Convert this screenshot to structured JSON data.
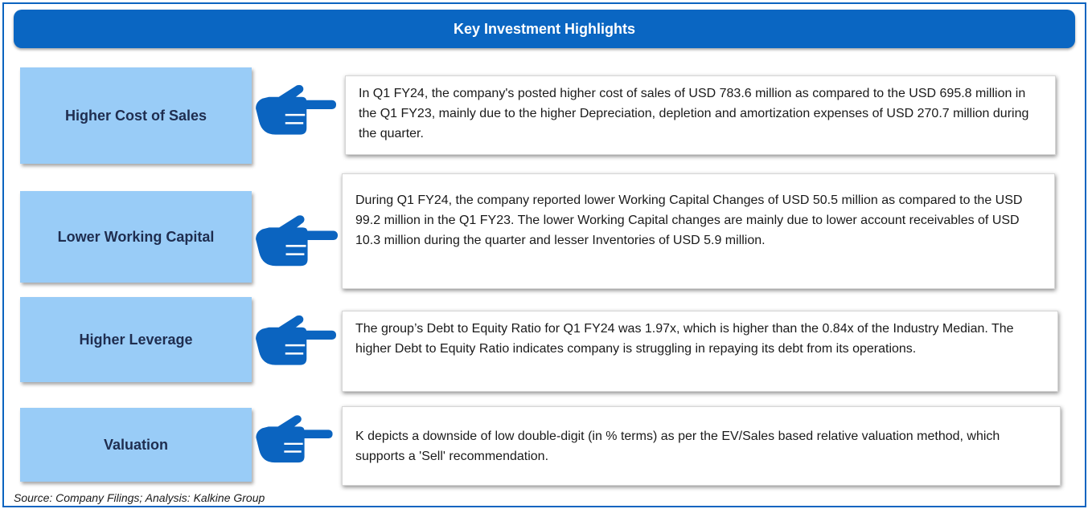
{
  "header": {
    "title": "Key Investment Highlights"
  },
  "highlights": [
    {
      "label": "Higher Cost of Sales",
      "text": "In Q1 FY24, the  company's posted higher cost of sales of USD 783.6 million as compared to the USD 695.8 million in the Q1 FY23, mainly due to the higher Depreciation, depletion and amortization expenses of USD 270.7 million during the quarter."
    },
    {
      "label": "Lower Working Capital",
      "text": "During Q1 FY24, the company reported   lower Working Capital Changes of USD 50.5 million as compared to the USD 99.2 million in the Q1 FY23.  The lower Working Capital changes are mainly due to lower account receivables of USD 10.3 million during the quarter and lesser Inventories of USD 5.9 million."
    },
    {
      "label": "Higher Leverage",
      "text": "The group’s  Debt to Equity Ratio for Q1 FY24 was  1.97x, which is higher than the 0.84x of the Industry Median. The higher Debt to Equity Ratio indicates company is struggling in repaying its debt from its operations."
    },
    {
      "label": "Valuation",
      "text": "K depicts a downside of low double-digit (in % terms) as per the EV/Sales based relative valuation method, which supports a 'Sell' recommendation."
    }
  ],
  "footer": {
    "source": "Source: Company Filings; Analysis: Kalkine Group"
  },
  "colors": {
    "accent": "#0a66c2",
    "label_bg": "#99ccf7",
    "hand": "#0b64c0"
  },
  "icons": {
    "pointer": "pointing-hand-icon"
  }
}
